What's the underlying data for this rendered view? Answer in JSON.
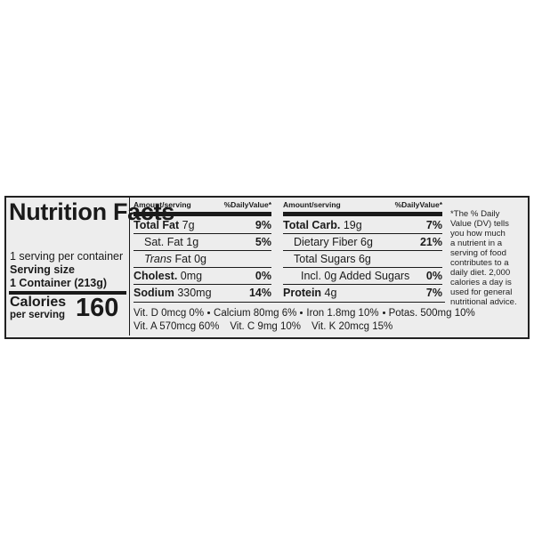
{
  "title": "Nutrition Facts",
  "servings": "1 serving per container",
  "serving_size_label": "Serving size",
  "serving_size": "1 Container (213g)",
  "calories_label": "Calories",
  "per_serving": "per serving",
  "calories": "160",
  "columns": [
    {
      "header_amount": "Amount/serving",
      "header_dv": "%DailyValue*",
      "rows": [
        {
          "name": "Total Fat",
          "amount": "7g",
          "dv": "9%"
        },
        {
          "name": "Sat. Fat",
          "amount": "1g",
          "dv": "5%"
        },
        {
          "name_italic": "Trans",
          "name": "Fat",
          "amount": "0g"
        },
        {
          "name": "Cholest.",
          "amount": "0mg",
          "dv": "0%"
        },
        {
          "name": "Sodium",
          "amount": "330mg",
          "dv": "14%"
        }
      ]
    },
    {
      "header_amount": "Amount/serving",
      "header_dv": "%DailyValue*",
      "rows": [
        {
          "name": "Total Carb.",
          "amount": "19g",
          "dv": "7%"
        },
        {
          "name": "Dietary Fiber",
          "amount": "6g",
          "dv": "21%"
        },
        {
          "name": "Total Sugars",
          "amount": "6g"
        },
        {
          "name": "Incl. 0g Added Sugars",
          "dv": "0%"
        },
        {
          "name": "Protein",
          "amount": "4g",
          "dv": "7%"
        }
      ]
    }
  ],
  "vitamins": [
    [
      "Vit. D 0mcg 0%",
      "Calcium 80mg 6%",
      "Iron 1.8mg 10%",
      "Potas. 500mg 10%"
    ],
    [
      "Vit. A 570mcg 60%",
      "Vit. C 9mg 10%",
      "Vit. K 20mcg 15%"
    ]
  ],
  "footnote": [
    "*The % Daily",
    "Value (DV) tells",
    "you how much",
    "a nutrient in a",
    "serving of food",
    "contributes to a",
    "daily diet. 2,000",
    "calories a day is",
    "used for general",
    "nutritional advice."
  ]
}
